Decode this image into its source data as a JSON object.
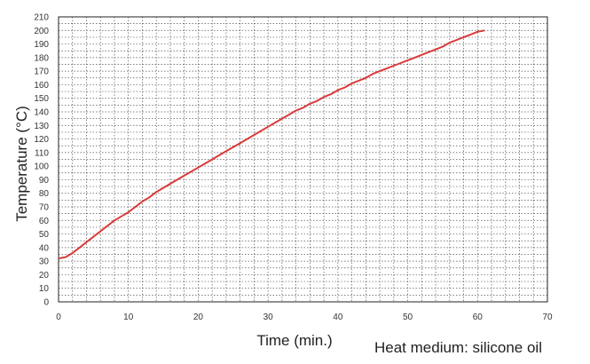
{
  "chart_data": {
    "type": "line",
    "xlabel": "Time (min.)",
    "ylabel": "Temperature (°C)",
    "annotation": "Heat medium: silicone oil",
    "xlim": [
      0,
      70
    ],
    "ylim": [
      0,
      210
    ],
    "x_ticks": [
      0,
      10,
      20,
      30,
      40,
      50,
      60,
      70
    ],
    "y_ticks": [
      0,
      10,
      20,
      30,
      40,
      50,
      60,
      70,
      80,
      90,
      100,
      110,
      120,
      130,
      140,
      150,
      160,
      170,
      180,
      190,
      200,
      210
    ],
    "grid": true,
    "line_color": "#d93a3a",
    "series": [
      {
        "x": [
          0,
          1,
          2,
          3,
          4,
          5,
          6,
          7,
          8,
          9,
          10,
          11,
          12,
          13,
          14,
          15,
          16,
          17,
          18,
          19,
          20,
          21,
          22,
          23,
          24,
          25,
          26,
          27,
          28,
          29,
          30,
          31,
          32,
          33,
          34,
          35,
          36,
          37,
          38,
          39,
          40,
          41,
          42,
          43,
          44,
          45,
          46,
          47,
          48,
          49,
          50,
          51,
          52,
          53,
          54,
          55,
          56,
          57,
          58,
          59,
          60,
          61
        ],
        "y": [
          32,
          33,
          36,
          40,
          44,
          48,
          52,
          56,
          60,
          63,
          66,
          70,
          74,
          77,
          81,
          84,
          87,
          90,
          93,
          96,
          99,
          102,
          105,
          108,
          111,
          114,
          117,
          120,
          123,
          126,
          129,
          132,
          135,
          138,
          141,
          143,
          146,
          148,
          151,
          153,
          156,
          158,
          161,
          163,
          165,
          168,
          170,
          172,
          174,
          176,
          178,
          180,
          182,
          184,
          186,
          188,
          191,
          193,
          195,
          197,
          199,
          200
        ]
      }
    ]
  }
}
